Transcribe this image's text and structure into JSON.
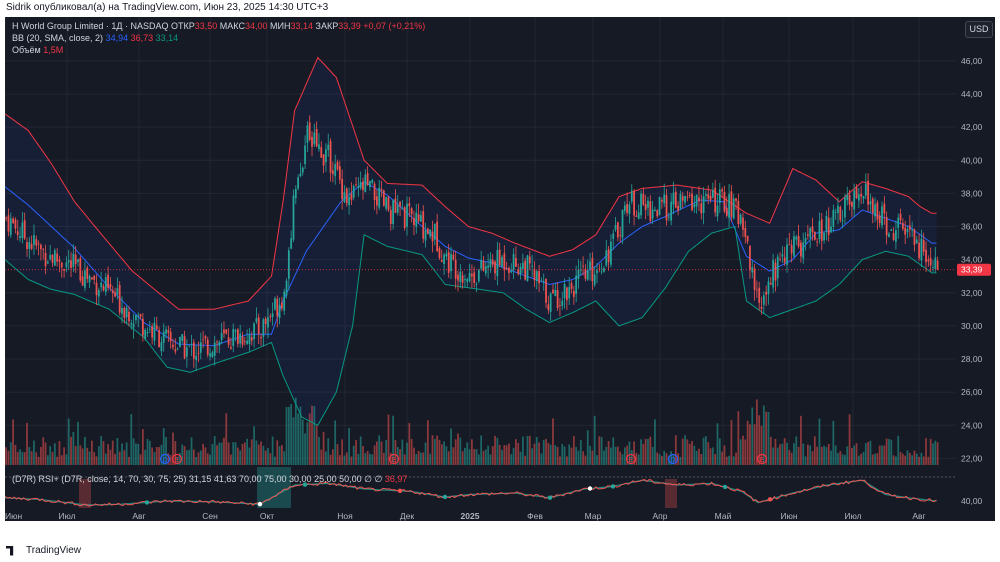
{
  "header": {
    "publisher": "Sidrik опубликовал(а) на TradingView.com, Июн 23, 2025 14:30 UTC+3"
  },
  "legend": {
    "symbol": "H World Group Limited · 1Д · NASDAQ",
    "open_label": "ОТКР",
    "open": "33,50",
    "high_label": "МАКС",
    "high": "34,00",
    "low_label": "МИН",
    "low": "33,14",
    "close_label": "ЗАКР",
    "close": "33,39",
    "change": "+0,07 (+0,21%)",
    "bb_label": "BB (20, SMA, close, 2)",
    "bb_basis": "34,94",
    "bb_upper": "36,73",
    "bb_lower": "33,14",
    "volume_label": "Объём",
    "volume": "1,5M"
  },
  "rsi_legend": {
    "label": "(D7R) RSI+ (D7R, close, 14, 70, 30, 75, 25)",
    "values": [
      "31,15",
      "41,63",
      "70,00",
      "75,00",
      "30,00",
      "25,00",
      "50,00",
      "∅",
      "∅",
      "36,97"
    ]
  },
  "currency": "USD",
  "price_badge": "33,39",
  "rsi_badge": "40,00",
  "footer": {
    "brand": "TradingView"
  },
  "colors": {
    "up": "#26a69a",
    "down": "#ef5350",
    "bb_upper": "#f23645",
    "bb_basis": "#2962ff",
    "bb_lower": "#089981",
    "background": "#161a25",
    "grid": "#232733"
  },
  "chart_data": {
    "type": "candlestick",
    "price_axis": {
      "ticks": [
        "46,00",
        "44,00",
        "42,00",
        "40,00",
        "38,00",
        "36,00",
        "34,00",
        "32,00",
        "30,00",
        "28,00",
        "26,00",
        "24,00",
        "22,00"
      ],
      "range": [
        21.6,
        47.2
      ]
    },
    "rsi_axis": {
      "ticks": [
        "40,00"
      ]
    },
    "time_axis": [
      "Июн",
      "Июл",
      "Авг",
      "Сен",
      "Окт",
      "Ноя",
      "Дек",
      "2025",
      "Фев",
      "Мар",
      "Апр",
      "Май",
      "Июн",
      "Июл",
      "Авг"
    ],
    "last_close": 33.39,
    "bb_upper_nodes": [
      [
        0,
        42.8
      ],
      [
        10,
        41.8
      ],
      [
        20,
        39.8
      ],
      [
        30,
        37.5
      ],
      [
        40,
        35.8
      ],
      [
        55,
        33.3
      ],
      [
        75,
        31.0
      ],
      [
        90,
        31.0
      ],
      [
        105,
        31.5
      ],
      [
        115,
        33.0
      ],
      [
        120,
        37.5
      ],
      [
        125,
        43.0
      ],
      [
        135,
        46.2
      ],
      [
        143,
        45.0
      ],
      [
        155,
        40.0
      ],
      [
        165,
        38.6
      ],
      [
        180,
        38.5
      ],
      [
        190,
        37.2
      ],
      [
        200,
        36.0
      ],
      [
        210,
        35.6
      ],
      [
        220,
        35.0
      ],
      [
        235,
        34.2
      ],
      [
        245,
        34.6
      ],
      [
        255,
        35.5
      ],
      [
        265,
        37.8
      ],
      [
        275,
        38.3
      ],
      [
        290,
        38.5
      ],
      [
        305,
        38.2
      ],
      [
        320,
        36.8
      ],
      [
        330,
        36.2
      ],
      [
        340,
        39.5
      ],
      [
        350,
        38.8
      ],
      [
        360,
        37.5
      ],
      [
        370,
        38.7
      ],
      [
        380,
        38.3
      ],
      [
        390,
        37.8
      ],
      [
        395,
        37.2
      ],
      [
        400,
        36.8
      ]
    ],
    "bb_basis_nodes": [
      [
        0,
        38.4
      ],
      [
        10,
        37.3
      ],
      [
        20,
        36.0
      ],
      [
        30,
        34.7
      ],
      [
        45,
        32.3
      ],
      [
        60,
        30.2
      ],
      [
        75,
        28.9
      ],
      [
        90,
        28.8
      ],
      [
        105,
        29.5
      ],
      [
        115,
        29.5
      ],
      [
        120,
        31.5
      ],
      [
        130,
        34.5
      ],
      [
        145,
        37.5
      ],
      [
        155,
        38.7
      ],
      [
        165,
        37.9
      ],
      [
        180,
        36.0
      ],
      [
        190,
        34.8
      ],
      [
        200,
        34.1
      ],
      [
        210,
        33.8
      ],
      [
        225,
        33.0
      ],
      [
        235,
        32.5
      ],
      [
        245,
        32.8
      ],
      [
        255,
        33.6
      ],
      [
        265,
        35.0
      ],
      [
        275,
        36.0
      ],
      [
        285,
        36.6
      ],
      [
        300,
        37.6
      ],
      [
        310,
        37.5
      ],
      [
        320,
        34.2
      ],
      [
        330,
        33.3
      ],
      [
        340,
        34.0
      ],
      [
        350,
        35.6
      ],
      [
        360,
        35.8
      ],
      [
        370,
        37.0
      ],
      [
        380,
        36.5
      ],
      [
        390,
        36.0
      ],
      [
        400,
        35.0
      ]
    ],
    "bb_lower_nodes": [
      [
        0,
        34.0
      ],
      [
        10,
        32.8
      ],
      [
        20,
        32.2
      ],
      [
        30,
        31.9
      ],
      [
        45,
        31.0
      ],
      [
        60,
        29.3
      ],
      [
        70,
        27.5
      ],
      [
        80,
        27.2
      ],
      [
        90,
        27.7
      ],
      [
        105,
        28.4
      ],
      [
        115,
        29.0
      ],
      [
        120,
        27.0
      ],
      [
        128,
        24.5
      ],
      [
        135,
        24.0
      ],
      [
        143,
        26.0
      ],
      [
        150,
        30.0
      ],
      [
        155,
        35.5
      ],
      [
        165,
        34.8
      ],
      [
        180,
        34.3
      ],
      [
        190,
        32.5
      ],
      [
        200,
        32.3
      ],
      [
        215,
        32.0
      ],
      [
        225,
        31.0
      ],
      [
        235,
        30.2
      ],
      [
        245,
        30.8
      ],
      [
        255,
        31.5
      ],
      [
        265,
        30.0
      ],
      [
        275,
        30.5
      ],
      [
        285,
        32.3
      ],
      [
        295,
        34.5
      ],
      [
        305,
        35.6
      ],
      [
        315,
        36.0
      ],
      [
        320,
        31.5
      ],
      [
        330,
        30.5
      ],
      [
        340,
        31.0
      ],
      [
        350,
        31.5
      ],
      [
        360,
        32.5
      ],
      [
        370,
        34.0
      ],
      [
        380,
        34.5
      ],
      [
        390,
        34.2
      ],
      [
        400,
        33.2
      ]
    ],
    "price_nodes": [
      [
        0,
        36.5
      ],
      [
        15,
        34.5
      ],
      [
        30,
        33.5
      ],
      [
        45,
        32.0
      ],
      [
        60,
        30.0
      ],
      [
        70,
        29.0
      ],
      [
        80,
        28.5
      ],
      [
        95,
        29.2
      ],
      [
        110,
        29.8
      ],
      [
        120,
        32.0
      ],
      [
        125,
        38.5
      ],
      [
        130,
        41.5
      ],
      [
        140,
        40.0
      ],
      [
        148,
        37.5
      ],
      [
        155,
        38.5
      ],
      [
        165,
        37.0
      ],
      [
        175,
        36.5
      ],
      [
        185,
        35.5
      ],
      [
        190,
        34.0
      ],
      [
        200,
        33.0
      ],
      [
        215,
        34.0
      ],
      [
        225,
        33.5
      ],
      [
        235,
        31.5
      ],
      [
        245,
        32.5
      ],
      [
        255,
        33.5
      ],
      [
        262,
        35.0
      ],
      [
        268,
        37.5
      ],
      [
        280,
        37.0
      ],
      [
        295,
        37.5
      ],
      [
        310,
        37.5
      ],
      [
        318,
        36.5
      ],
      [
        322,
        33.0
      ],
      [
        326,
        31.5
      ],
      [
        335,
        34.5
      ],
      [
        345,
        35.0
      ],
      [
        355,
        36.0
      ],
      [
        365,
        37.5
      ],
      [
        372,
        38.0
      ],
      [
        380,
        36.0
      ],
      [
        390,
        35.5
      ],
      [
        398,
        34.0
      ],
      [
        402,
        33.39
      ]
    ],
    "rsi_nodes": [
      [
        0,
        44
      ],
      [
        15,
        42
      ],
      [
        35,
        35
      ],
      [
        50,
        36
      ],
      [
        70,
        40
      ],
      [
        90,
        39
      ],
      [
        110,
        36
      ],
      [
        125,
        60
      ],
      [
        140,
        62
      ],
      [
        155,
        55
      ],
      [
        175,
        52
      ],
      [
        190,
        45
      ],
      [
        200,
        48
      ],
      [
        220,
        50
      ],
      [
        235,
        44
      ],
      [
        250,
        55
      ],
      [
        262,
        58
      ],
      [
        275,
        66
      ],
      [
        290,
        60
      ],
      [
        305,
        62
      ],
      [
        318,
        52
      ],
      [
        325,
        38
      ],
      [
        340,
        50
      ],
      [
        355,
        60
      ],
      [
        370,
        66
      ],
      [
        380,
        48
      ],
      [
        390,
        44
      ],
      [
        402,
        40
      ]
    ]
  }
}
